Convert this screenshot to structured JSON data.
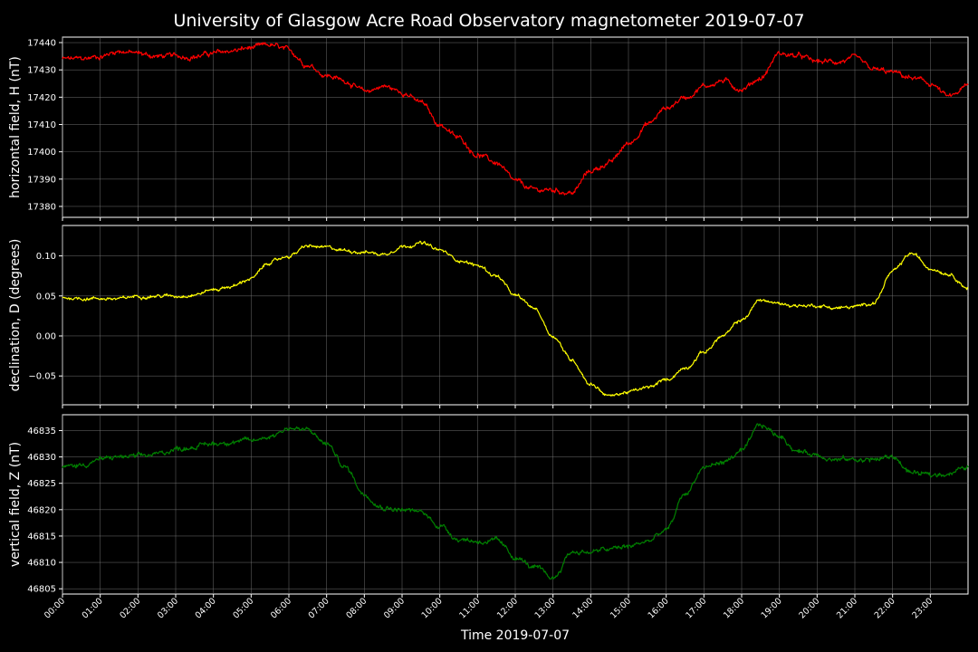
{
  "chart_data": {
    "type": "line",
    "title": "University of Glasgow Acre Road Observatory magnetometer 2019-07-07",
    "xlabel": "Time 2019-07-07",
    "x_tick_labels": [
      "00:00",
      "01:00",
      "02:00",
      "03:00",
      "04:00",
      "05:00",
      "06:00",
      "07:00",
      "08:00",
      "09:00",
      "10:00",
      "11:00",
      "12:00",
      "13:00",
      "14:00",
      "15:00",
      "16:00",
      "17:00",
      "18:00",
      "19:00",
      "20:00",
      "21:00",
      "22:00",
      "23:00"
    ],
    "xlim_hours": [
      0,
      24
    ],
    "grid": true,
    "panels": [
      {
        "ylabel": "horizontal field, H (nT)",
        "color": "#ff0000",
        "ylim": [
          17376,
          17442
        ],
        "yticks": [
          17380,
          17390,
          17400,
          17410,
          17420,
          17430,
          17440
        ],
        "ytick_labels": [
          "17380",
          "17390",
          "17400",
          "17410",
          "17420",
          "17430",
          "17440"
        ],
        "noise": 1.1,
        "x": [
          0,
          0.5,
          1,
          1.5,
          2,
          2.5,
          3,
          3.5,
          4,
          4.5,
          5,
          5.5,
          6,
          6.5,
          7,
          7.5,
          8,
          8.5,
          9,
          9.5,
          10,
          10.5,
          11,
          11.5,
          12,
          12.5,
          13,
          13.5,
          14,
          14.5,
          15,
          15.5,
          16,
          16.5,
          17,
          17.5,
          18,
          18.5,
          19,
          19.5,
          20,
          20.5,
          21,
          21.5,
          22,
          22.5,
          23,
          23.5,
          24
        ],
        "values": [
          17434,
          17434,
          17435,
          17437,
          17436,
          17435,
          17435,
          17435,
          17436,
          17437,
          17438,
          17439,
          17437,
          17432,
          17428,
          17426,
          17422,
          17424,
          17422,
          17418,
          17410,
          17405,
          17399,
          17396,
          17389,
          17386,
          17386,
          17385,
          17393,
          17396,
          17403,
          17410,
          17416,
          17420,
          17424,
          17426,
          17423,
          17427,
          17436,
          17435,
          17433,
          17433,
          17434,
          17430,
          17429,
          17427,
          17425,
          17420,
          17424
        ]
      },
      {
        "ylabel": "declination, D (degrees)",
        "color": "#ffff00",
        "ylim": [
          -0.086,
          0.138
        ],
        "yticks": [
          -0.05,
          0.0,
          0.05,
          0.1
        ],
        "ytick_labels": [
          "−0.05",
          "0.00",
          "0.05",
          "0.10"
        ],
        "noise": 0.0025,
        "x": [
          0,
          0.5,
          1,
          1.5,
          2,
          2.5,
          3,
          3.5,
          4,
          4.5,
          5,
          5.5,
          6,
          6.5,
          7,
          7.5,
          8,
          8.5,
          9,
          9.5,
          10,
          10.5,
          11,
          11.5,
          12,
          12.5,
          13,
          13.5,
          14,
          14.5,
          15,
          15.5,
          16,
          16.5,
          17,
          17.5,
          18,
          18.5,
          19,
          19.5,
          20,
          20.5,
          21,
          21.5,
          22,
          22.5,
          23,
          23.5,
          24
        ],
        "values": [
          0.048,
          0.047,
          0.047,
          0.046,
          0.05,
          0.05,
          0.05,
          0.052,
          0.058,
          0.062,
          0.072,
          0.092,
          0.1,
          0.112,
          0.11,
          0.107,
          0.105,
          0.102,
          0.112,
          0.116,
          0.107,
          0.095,
          0.088,
          0.075,
          0.05,
          0.035,
          0.0,
          -0.03,
          -0.06,
          -0.075,
          -0.07,
          -0.065,
          -0.055,
          -0.04,
          -0.02,
          0.0,
          0.02,
          0.045,
          0.04,
          0.038,
          0.038,
          0.035,
          0.036,
          0.042,
          0.08,
          0.103,
          0.085,
          0.078,
          0.06
        ]
      },
      {
        "ylabel": "vertical field, Z (nT)",
        "color": "#008000",
        "ylim": [
          46804,
          46838
        ],
        "yticks": [
          46805,
          46810,
          46815,
          46820,
          46825,
          46830,
          46835
        ],
        "ytick_labels": [
          "46805",
          "46810",
          "46815",
          "46820",
          "46825",
          "46830",
          "46835"
        ],
        "noise": 0.55,
        "x": [
          0,
          0.5,
          1,
          1.5,
          2,
          2.5,
          3,
          3.5,
          4,
          4.5,
          5,
          5.5,
          6,
          6.5,
          7,
          7.5,
          8,
          8.5,
          9,
          9.5,
          10,
          10.5,
          11,
          11.5,
          12,
          12.5,
          13,
          13.5,
          14,
          14.5,
          15,
          15.5,
          16,
          16.5,
          17,
          17.5,
          18,
          18.5,
          19,
          19.5,
          20,
          20.5,
          21,
          21.5,
          22,
          22.5,
          23,
          23.5,
          24
        ],
        "values": [
          46828,
          46828.5,
          46829.5,
          46830,
          46830,
          46830.5,
          46831.5,
          46832,
          46832.5,
          46833,
          46833,
          46834,
          46835.5,
          46835,
          46832.5,
          46828,
          46823,
          46820.5,
          46820,
          46819.5,
          46817,
          46814.5,
          46814,
          46814,
          46811,
          46809,
          46807,
          46812,
          46812,
          46812.5,
          46813,
          46814,
          46816,
          46823,
          46828,
          46829,
          46831,
          46836,
          46834,
          46831,
          46830.5,
          46829.5,
          46829.5,
          46829.5,
          46830,
          46827,
          46826.5,
          46827,
          46828
        ]
      }
    ]
  }
}
